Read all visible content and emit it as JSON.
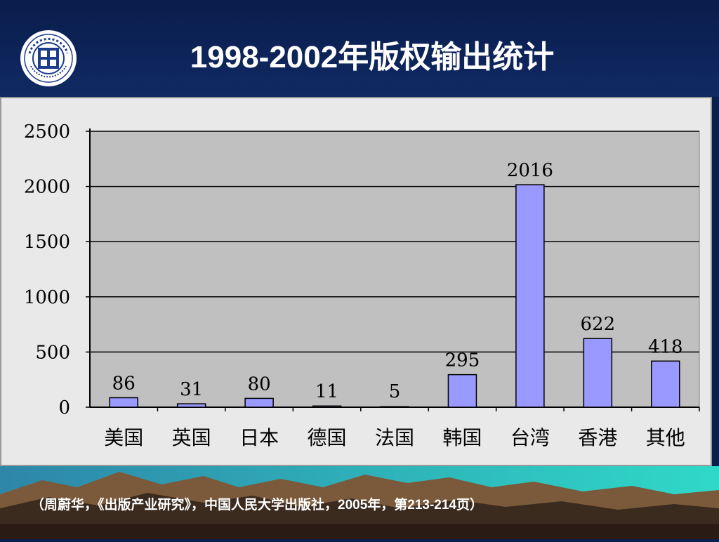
{
  "title": "1998-2002年版权输出统计",
  "caption": "（周蔚华，《出版产业研究》，中国人民大学出版社，2005年，第213-214页）",
  "logo_icon": "university-seal-icon",
  "colors": {
    "bar": "#9999ff",
    "plot_bg": "#c0c0c0",
    "panel_bg": "#e9e9e9",
    "header_bg": "#0a1d4c"
  },
  "chart_data": {
    "type": "bar",
    "categories": [
      "美国",
      "英国",
      "日本",
      "德国",
      "法国",
      "韩国",
      "台湾",
      "香港",
      "其他"
    ],
    "values": [
      86,
      31,
      80,
      11,
      5,
      295,
      2016,
      622,
      418
    ],
    "ylim": [
      0,
      2500
    ],
    "yticks": [
      0,
      500,
      1000,
      1500,
      2000,
      2500
    ],
    "grid": true,
    "legend": "none",
    "data_labels": true
  }
}
